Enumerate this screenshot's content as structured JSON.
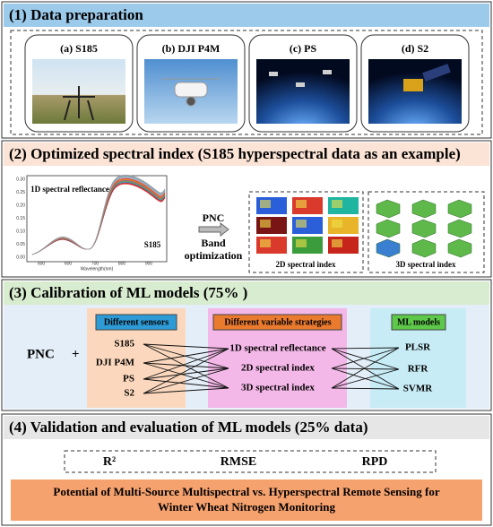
{
  "sections": [
    {
      "title": "(1) Data preparation",
      "panels": [
        "(a) S185",
        "(b) DJI P4M",
        "(c) PS",
        "(d) S2"
      ]
    },
    {
      "title": "(2) Optimized spectral index (S185 hyperspectral data as an example)",
      "plot": {
        "label": "1D spectral reflectance",
        "sensor": "S185",
        "x_label": "Wavelength(nm)",
        "yticks": [
          "0.30",
          "0.25",
          "0.20",
          "0.15",
          "0.10",
          "0.05",
          "0.00"
        ],
        "xticks": [
          "500",
          "600",
          "700",
          "800",
          "900"
        ]
      },
      "arrow": {
        "top": "PNC",
        "bottom": [
          "Band",
          "optimization"
        ]
      },
      "boxes": [
        "2D spectral index",
        "3D spectral index"
      ]
    },
    {
      "title": "(3) Calibration of ML models (75% )",
      "target": "PNC",
      "plus": "+",
      "groups": [
        {
          "title": "Different sensors",
          "items": [
            "S185",
            "DJI P4M",
            "PS",
            "S2"
          ]
        },
        {
          "title": "Different variable strategies",
          "items": [
            "1D spectral reflectance",
            "2D spectral index",
            "3D spectral index"
          ]
        },
        {
          "title": "ML models",
          "items": [
            "PLSR",
            "RFR",
            "SVMR"
          ]
        }
      ]
    },
    {
      "title": "(4) Validation and evaluation of ML models (25% data)",
      "metrics": [
        "R²",
        "RMSE",
        "RPD"
      ],
      "conclusion": [
        "Potential of Multi-Source Multispectral vs. Hyperspectral Remote Sensing for",
        "Winter Wheat Nitrogen Monitoring"
      ]
    }
  ]
}
